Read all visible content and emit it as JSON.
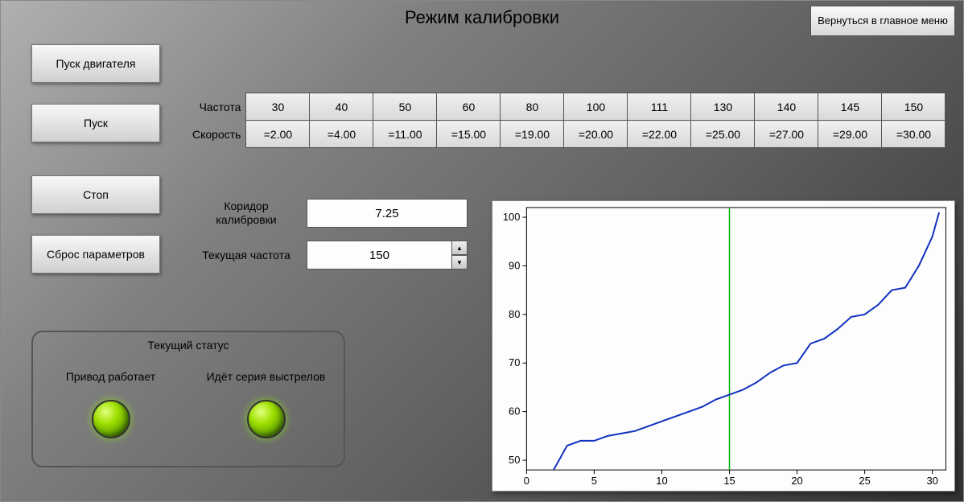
{
  "title": "Режим калибровки",
  "return_button": "Вернуться в главное меню",
  "buttons": {
    "engine_start": "Пуск двигателя",
    "start": "Пуск",
    "stop": "Стоп",
    "reset": "Сброс параметров"
  },
  "table": {
    "row1_label": "Частота",
    "row2_label": "Скорость",
    "frequency": [
      "30",
      "40",
      "50",
      "60",
      "80",
      "100",
      "111",
      "130",
      "140",
      "145",
      "150"
    ],
    "speed": [
      "=2.00",
      "=4.00",
      "=11.00",
      "=15.00",
      "=19.00",
      "=20.00",
      "=22.00",
      "=25.00",
      "=27.00",
      "=29.00",
      "=30.00"
    ]
  },
  "params": {
    "corridor_label": "Коридор калибровки",
    "corridor_value": "7.25",
    "freq_label": "Текущая частота",
    "freq_value": "150"
  },
  "status": {
    "title": "Текущий статус",
    "led1_label": "Привод работает",
    "led2_label": "Идёт серия выстрелов",
    "led1_on": true,
    "led2_on": true,
    "led_on_color": "#a0e000"
  },
  "chart": {
    "type": "line",
    "background_color": "#fdfdfd",
    "line_color": "#1030c0",
    "cursor_color": "#00b000",
    "grid_color": "#cccccc",
    "axis_color": "#000000",
    "xlim": [
      0,
      31
    ],
    "ylim": [
      48,
      102
    ],
    "xticks": [
      0,
      5,
      10,
      15,
      20,
      25,
      30
    ],
    "yticks": [
      50,
      60,
      70,
      80,
      90,
      100
    ],
    "cursor_x": 15,
    "line_width": 2,
    "tick_fontsize": 13,
    "points": [
      [
        2,
        48
      ],
      [
        3,
        53
      ],
      [
        4,
        54
      ],
      [
        5,
        54
      ],
      [
        6,
        55
      ],
      [
        7,
        55.5
      ],
      [
        8,
        56
      ],
      [
        9,
        57
      ],
      [
        10,
        58
      ],
      [
        11,
        59
      ],
      [
        12,
        60
      ],
      [
        13,
        61
      ],
      [
        14,
        62.5
      ],
      [
        15,
        63.5
      ],
      [
        16,
        64.5
      ],
      [
        17,
        66
      ],
      [
        18,
        68
      ],
      [
        19,
        69.5
      ],
      [
        20,
        70
      ],
      [
        21,
        74
      ],
      [
        22,
        75
      ],
      [
        23,
        77
      ],
      [
        24,
        79.5
      ],
      [
        25,
        80
      ],
      [
        26,
        82
      ],
      [
        27,
        85
      ],
      [
        28,
        85.5
      ],
      [
        29,
        90
      ],
      [
        30,
        96
      ],
      [
        30.5,
        101
      ]
    ]
  },
  "colors": {
    "panel_grad_start": "#b0b0b0",
    "panel_grad_end": "#303030",
    "button_bg_top": "#f8f8f8",
    "button_bg_bottom": "#d0d0d0",
    "cell_bg_top": "#f0f0f0",
    "cell_bg_bottom": "#d8d8d8"
  }
}
